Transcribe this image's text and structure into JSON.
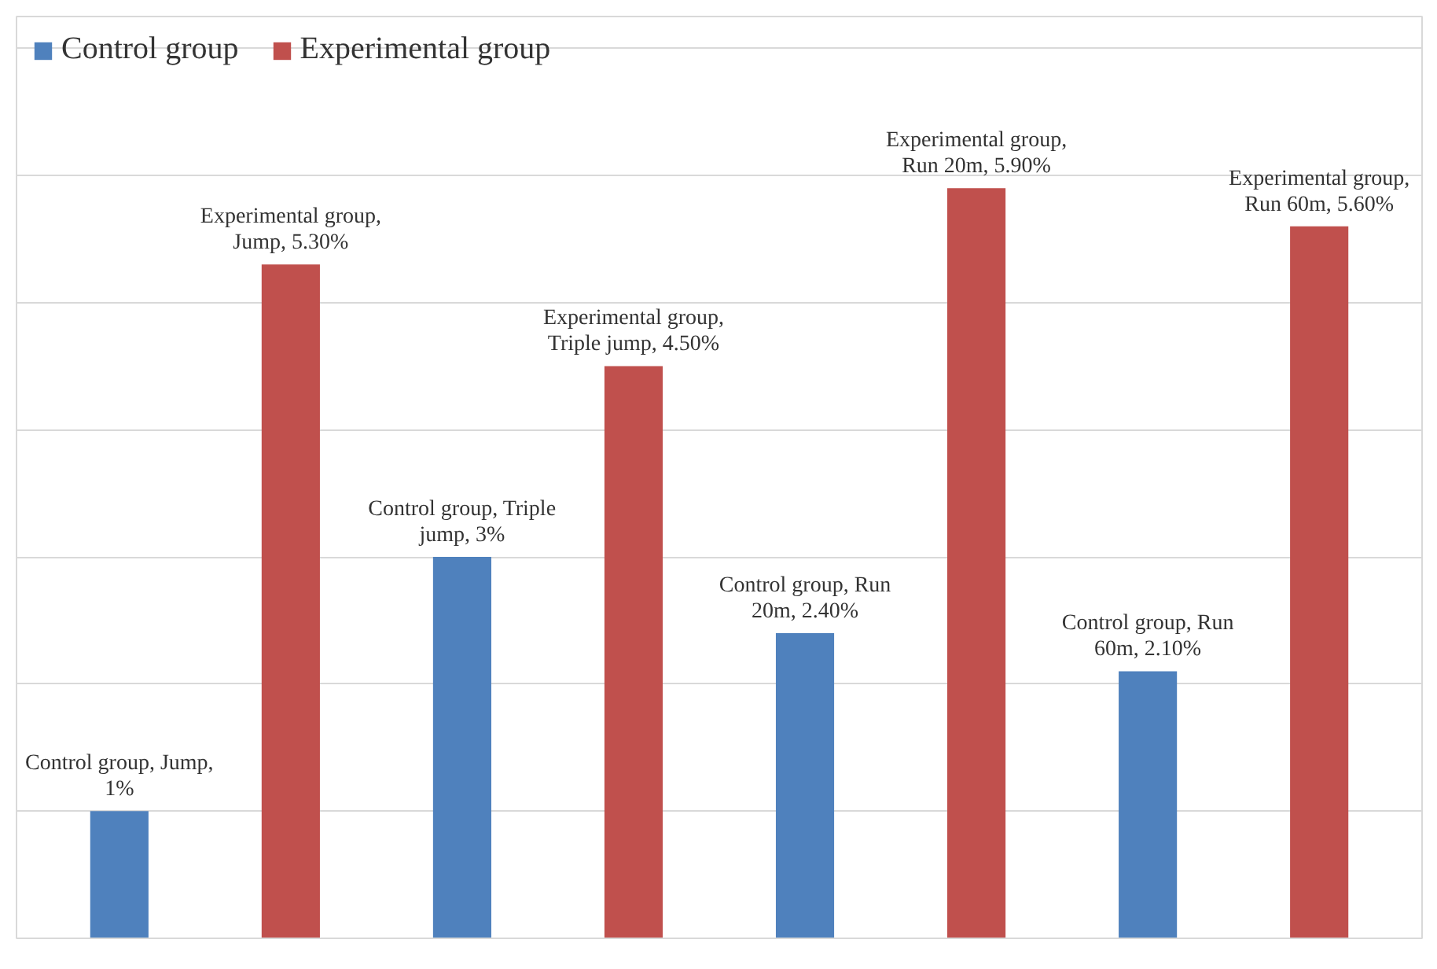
{
  "chart_data": {
    "type": "bar",
    "categories": [
      null,
      null,
      null,
      null
    ],
    "series": [
      {
        "name": "Control group",
        "color": "#4f81bd",
        "values": [
          1,
          3,
          2.4,
          2.1
        ],
        "value_labels": [
          "Control group, Jump,\n1%",
          "Control group, Triple\njump, 3%",
          "Control group, Run\n20m, 2.40%",
          "Control group, Run\n60m, 2.10%"
        ]
      },
      {
        "name": "Experimental group",
        "color": "#c0504d",
        "values": [
          5.3,
          4.5,
          5.9,
          5.6
        ],
        "value_labels": [
          "Experimental group,\nJump, 5.30%",
          "Experimental group,\nTriple jump, 4.50%",
          "Experimental group,\nRun 20m, 5.90%",
          "Experimental group,\nRun 60m, 5.60%"
        ]
      }
    ],
    "ylim": [
      0,
      7.25
    ],
    "yticks": [
      {
        "value": 0,
        "label": null
      },
      {
        "value": 1,
        "label": null
      },
      {
        "value": 2,
        "label": null
      },
      {
        "value": 3,
        "label": null
      },
      {
        "value": 4,
        "label": null
      },
      {
        "value": 5,
        "label": null
      },
      {
        "value": 6,
        "label": null
      },
      {
        "value": 7,
        "label": null
      }
    ],
    "tick_labels": false,
    "grid": "y",
    "legend": "top left"
  }
}
